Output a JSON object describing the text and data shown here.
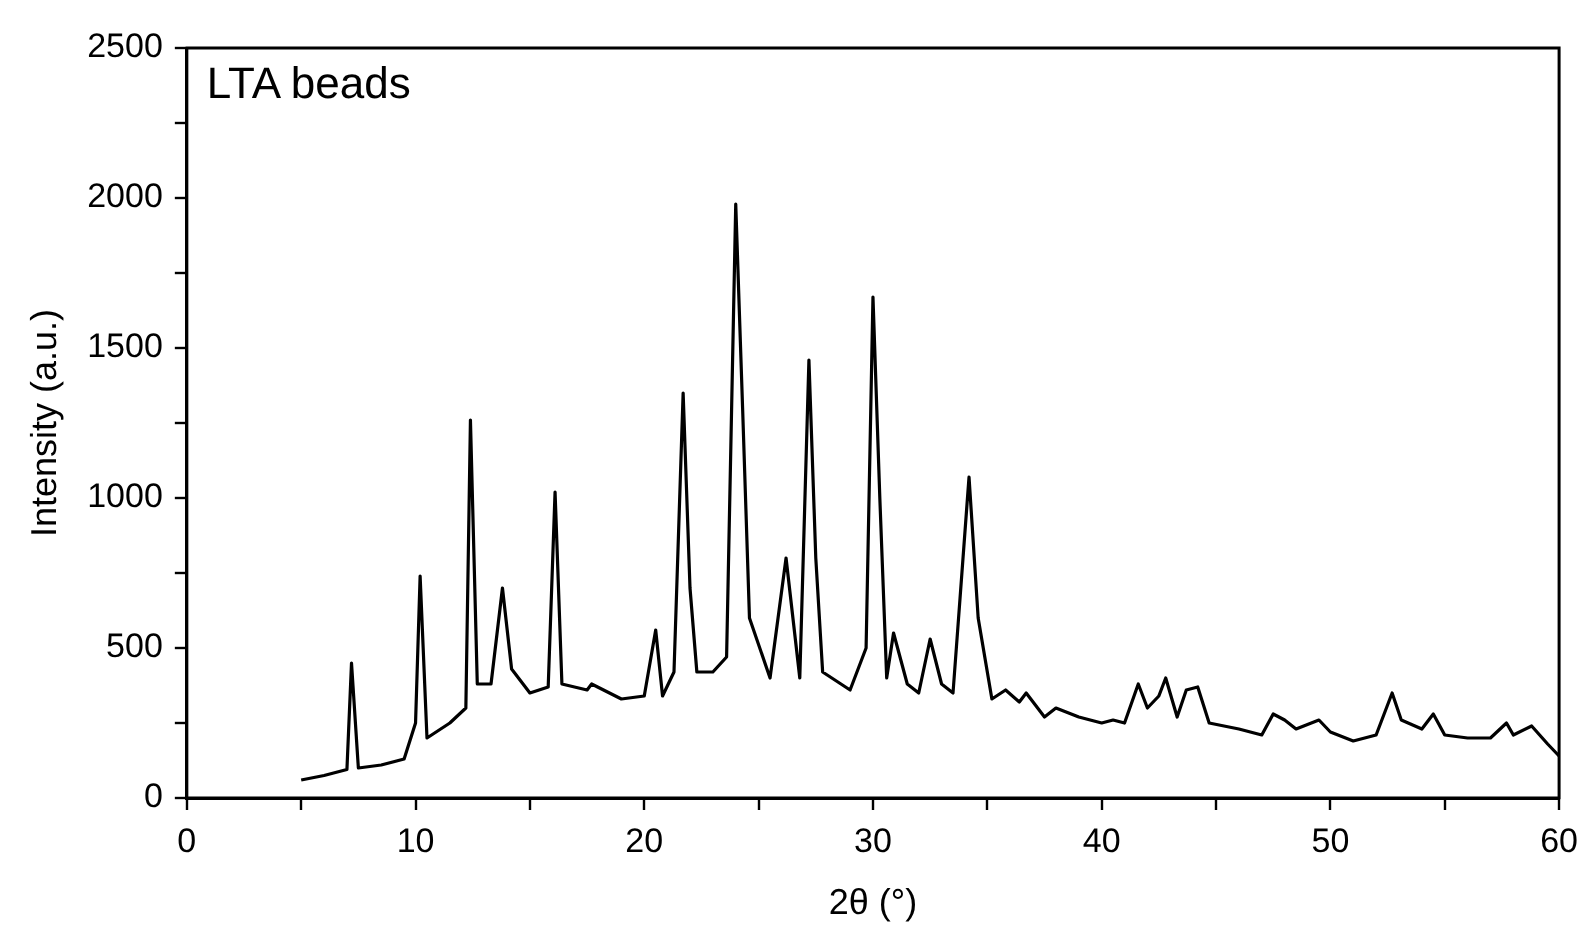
{
  "chart_data": {
    "type": "line",
    "title": "LTA beads",
    "xlabel": "2θ (°)",
    "ylabel": "Intensity (a.u.)",
    "x": [
      5,
      6,
      7,
      7.2,
      7.5,
      8.5,
      9.5,
      10,
      10.2,
      10.5,
      11.5,
      12.2,
      12.4,
      12.7,
      13.3,
      13.8,
      14.2,
      15,
      15.8,
      16.1,
      16.4,
      17.5,
      17.7,
      19,
      20,
      20.5,
      20.8,
      21.3,
      21.7,
      22,
      22.3,
      23,
      23.6,
      24,
      24.3,
      24.6,
      25.5,
      26.2,
      26.5,
      26.8,
      27.2,
      27.5,
      27.8,
      29,
      29.7,
      30,
      30.3,
      30.6,
      30.9,
      31.5,
      32,
      32.5,
      33,
      33.5,
      34.2,
      34.6,
      35.2,
      35.8,
      36.4,
      36.7,
      37.5,
      38,
      39,
      40,
      40.5,
      41,
      41.6,
      42,
      42.5,
      42.8,
      43.3,
      43.7,
      44.2,
      44.7,
      46,
      47,
      47.5,
      48,
      48.5,
      49.5,
      50,
      51,
      52,
      52.7,
      53.1,
      54,
      54.5,
      55,
      56,
      57,
      57.7,
      58,
      58.8,
      59.5,
      60
    ],
    "series": [
      {
        "color": "#000000",
        "values": [
          60,
          75,
          95,
          450,
          100,
          110,
          130,
          250,
          740,
          200,
          250,
          300,
          1260,
          380,
          380,
          700,
          430,
          350,
          370,
          1020,
          380,
          360,
          380,
          330,
          340,
          560,
          340,
          420,
          1350,
          700,
          420,
          420,
          470,
          1980,
          1300,
          600,
          400,
          800,
          600,
          400,
          1460,
          800,
          420,
          360,
          500,
          1670,
          1000,
          400,
          550,
          380,
          350,
          530,
          380,
          350,
          1070,
          600,
          330,
          360,
          320,
          350,
          270,
          300,
          270,
          250,
          260,
          250,
          380,
          300,
          340,
          400,
          270,
          360,
          370,
          250,
          230,
          210,
          280,
          260,
          230,
          260,
          220,
          190,
          210,
          350,
          260,
          230,
          280,
          210,
          200,
          200,
          250,
          210,
          240,
          180,
          140
        ]
      }
    ],
    "xlim": [
      0,
      60
    ],
    "xticks": [
      0,
      {
        "value": 5,
        "label": null
      },
      10,
      {
        "value": 15,
        "label": null
      },
      20,
      {
        "value": 25,
        "label": null
      },
      30,
      {
        "value": 35,
        "label": null
      },
      40,
      {
        "value": 45,
        "label": null
      },
      50,
      {
        "value": 55,
        "label": null
      },
      60
    ],
    "ylim": [
      0,
      2500
    ],
    "yticks": [
      0,
      {
        "value": 250,
        "label": null
      },
      500,
      {
        "value": 750,
        "label": null
      },
      1000,
      {
        "value": 1250,
        "label": null
      },
      1500,
      {
        "value": 1750,
        "label": null
      },
      2000,
      {
        "value": 2250,
        "label": null
      },
      2500
    ],
    "grid": false,
    "legend": false,
    "marker": "none",
    "line_style": "solid"
  }
}
